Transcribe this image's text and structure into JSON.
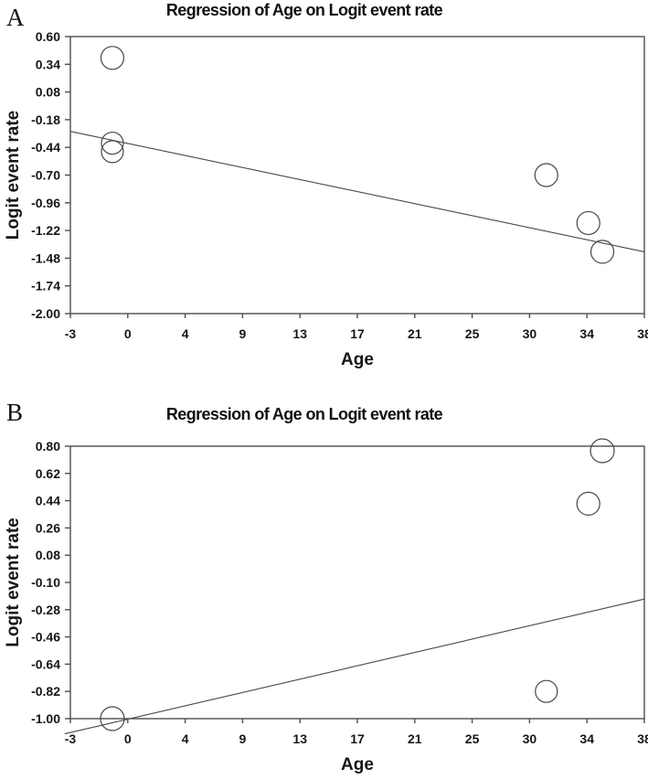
{
  "figure": {
    "background": "#ffffff",
    "text_color": "#111111",
    "axis_color": "#4d4d4d",
    "shape_color": "#474747"
  },
  "chart_data": [
    {
      "type": "scatter",
      "panel_label": "A",
      "title": "Regression of Age on Logit event rate",
      "xlabel": "Age",
      "ylabel": "Logit event rate",
      "xlim": [
        -3,
        38
      ],
      "ylim": [
        -2.0,
        0.6
      ],
      "xtick_labels": [
        "-3",
        "0",
        "4",
        "9",
        "13",
        "17",
        "21",
        "25",
        "30",
        "34",
        "38"
      ],
      "ytick_labels": [
        "0.60",
        "0.34",
        "0.08",
        "-0.18",
        "-0.44",
        "-0.70",
        "-0.96",
        "-1.22",
        "-1.48",
        "-1.74",
        "-2.00"
      ],
      "grid": false,
      "legend": null,
      "points": [
        {
          "x": 0,
          "y": 0.4,
          "r": 12.5
        },
        {
          "x": 0,
          "y": -0.4,
          "r": 12
        },
        {
          "x": 0,
          "y": -0.48,
          "r": 12
        },
        {
          "x": 31,
          "y": -0.7,
          "r": 12.5
        },
        {
          "x": 34,
          "y": -1.15,
          "r": 12.5
        },
        {
          "x": 35,
          "y": -1.42,
          "r": 12.5
        }
      ],
      "regression_line": {
        "x1": -3,
        "y1": -0.29,
        "x2": 38,
        "y2": -1.42
      }
    },
    {
      "type": "scatter",
      "panel_label": "B",
      "title": "Regression of Age on Logit event rate",
      "xlabel": "Age",
      "ylabel": "Logit event rate",
      "xlim": [
        -3,
        38
      ],
      "ylim": [
        -1.0,
        0.8
      ],
      "xtick_labels": [
        "-3",
        "0",
        "4",
        "9",
        "13",
        "17",
        "21",
        "25",
        "30",
        "34",
        "38"
      ],
      "ytick_labels": [
        "0.80",
        "0.62",
        "0.44",
        "0.26",
        "0.08",
        "-0.10",
        "-0.28",
        "-0.46",
        "-0.64",
        "-0.82",
        "-1.00"
      ],
      "grid": false,
      "legend": null,
      "points": [
        {
          "x": 0,
          "y": -1.0,
          "r": 13
        },
        {
          "x": 31,
          "y": -0.82,
          "r": 12
        },
        {
          "x": 34,
          "y": 0.42,
          "r": 12.5
        },
        {
          "x": 35,
          "y": 0.77,
          "r": 13
        }
      ],
      "regression_line": {
        "x1": -3.4,
        "y1": -1.1,
        "x2": 38,
        "y2": -0.21
      }
    }
  ]
}
